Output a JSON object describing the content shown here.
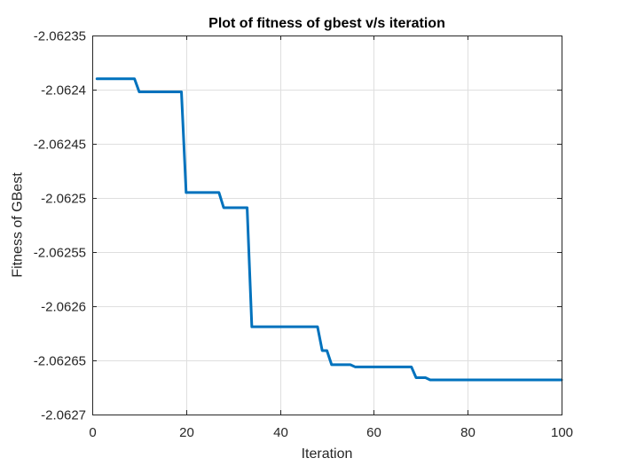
{
  "chart_data": {
    "type": "line",
    "title": "Plot of fitness of gbest v/s iteration",
    "xlabel": "Iteration",
    "ylabel": "Fitness of GBest",
    "xlim": [
      0,
      100
    ],
    "ylim": [
      -2.0627,
      -2.06235
    ],
    "xticks": [
      0,
      20,
      40,
      60,
      80,
      100
    ],
    "yticks": [
      -2.0627,
      -2.06265,
      -2.0626,
      -2.06255,
      -2.0625,
      -2.06245,
      -2.0624,
      -2.06235
    ],
    "ytick_labels": [
      "-2.0627",
      "-2.06265",
      "-2.0626",
      "-2.06255",
      "-2.0625",
      "-2.06245",
      "-2.0624",
      "-2.06235"
    ],
    "xtick_labels": [
      "0",
      "20",
      "40",
      "60",
      "80",
      "100"
    ],
    "grid": true,
    "series": [
      {
        "color": "#0072bd",
        "x": [
          1,
          9,
          10,
          19,
          20,
          27,
          28,
          33,
          34,
          48,
          49,
          50,
          51,
          55,
          56,
          68,
          69,
          71,
          72,
          87,
          100
        ],
        "y": [
          -2.06239,
          -2.06239,
          -2.062402,
          -2.062402,
          -2.062495,
          -2.062495,
          -2.062509,
          -2.062509,
          -2.062619,
          -2.062619,
          -2.062641,
          -2.062641,
          -2.062654,
          -2.062654,
          -2.062656,
          -2.062656,
          -2.062666,
          -2.062666,
          -2.062668,
          -2.062668,
          -2.062668
        ]
      }
    ]
  }
}
